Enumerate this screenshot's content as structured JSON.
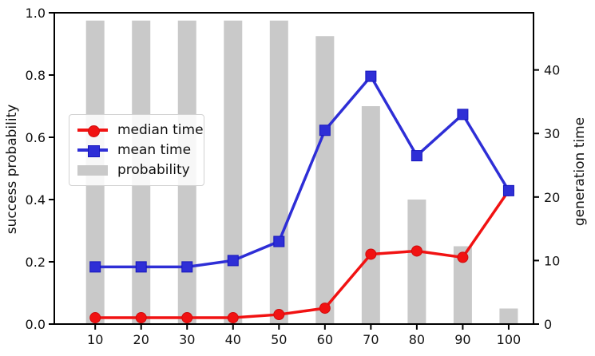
{
  "figure": {
    "background": "#ffffff",
    "spine_color": "#000000",
    "bar_color": "#c9c9c9",
    "text_color": "#111111"
  },
  "chart_data": {
    "type": "combo-dual-axis",
    "categories": [
      10,
      20,
      30,
      40,
      50,
      60,
      70,
      80,
      90,
      100
    ],
    "series": [
      {
        "name": "median time",
        "type": "line",
        "marker": "circle",
        "axis": "right",
        "color": "#f11212",
        "edge_color": "#cf0d0d",
        "values": [
          1,
          1,
          1,
          1,
          1.5,
          2.5,
          11,
          11.5,
          10.5,
          21
        ]
      },
      {
        "name": "mean time",
        "type": "line",
        "marker": "square",
        "axis": "right",
        "color": "#2e2ed6",
        "edge_color": "#1717bd",
        "values": [
          9,
          9,
          9,
          10,
          13,
          30.5,
          39,
          26.5,
          33,
          21
        ]
      },
      {
        "name": "probability",
        "type": "bar",
        "axis": "left",
        "color": "#c9c9c9",
        "bar_width_units": 4,
        "values": [
          0.975,
          0.975,
          0.975,
          0.975,
          0.975,
          0.925,
          0.7,
          0.4,
          0.25,
          0.05
        ]
      }
    ],
    "x_axis": {
      "lim": [
        1.1,
        105.4
      ],
      "ticks": [
        10,
        20,
        30,
        40,
        50,
        60,
        70,
        80,
        90,
        100
      ],
      "tick_labels": [
        "10",
        "20",
        "30",
        "40",
        "50",
        "60",
        "70",
        "80",
        "90",
        "100"
      ]
    },
    "left_axis": {
      "label": "success probability",
      "lim": [
        0,
        1
      ],
      "ticks": [
        0,
        0.2,
        0.4,
        0.6,
        0.8,
        1.0
      ],
      "tick_labels": [
        "0.0",
        "0.2",
        "0.4",
        "0.6",
        "0.8",
        "1.0"
      ]
    },
    "right_axis": {
      "label": "generation time",
      "lim": [
        0,
        49
      ],
      "ticks": [
        0,
        10,
        20,
        30,
        40
      ],
      "tick_labels": [
        "0",
        "10",
        "20",
        "30",
        "40"
      ]
    },
    "legend": {
      "position": "center-left",
      "entries": [
        "median time",
        "mean time",
        "probability"
      ]
    },
    "grid": false
  }
}
